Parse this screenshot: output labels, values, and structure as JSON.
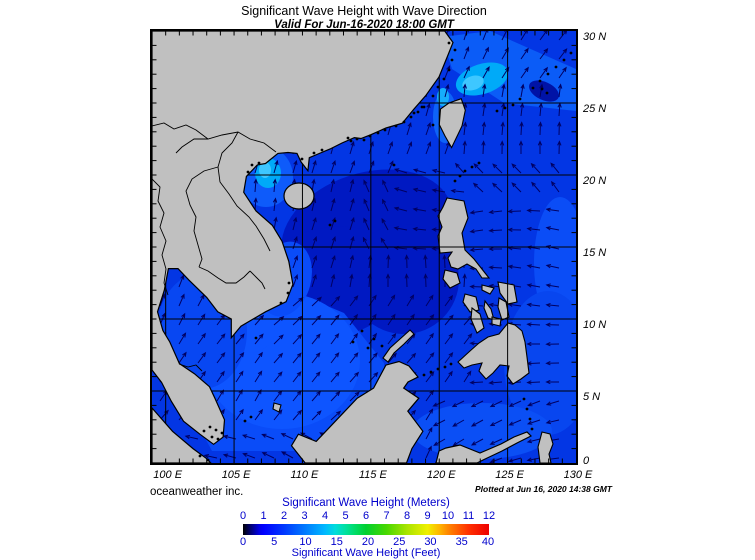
{
  "title": "Significant Wave Height with Wave Direction",
  "subtitle": "Valid For Jun-16-2020 18:00 GMT",
  "map": {
    "lat_labels": [
      "30 N",
      "25 N",
      "20 N",
      "15 N",
      "10 N",
      "5 N",
      "0"
    ],
    "lon_labels": [
      "100 E",
      "105 E",
      "110 E",
      "115 E",
      "120 E",
      "125 E",
      "130 E"
    ]
  },
  "footer": {
    "credit": "oceanweather inc.",
    "plotted_at": "Plotted at Jun 16, 2020 14:38 GMT"
  },
  "legend": {
    "meters_label": "Significant Wave Height (Meters)",
    "feet_label": "Significant Wave Height (Feet)",
    "meters_ticks": [
      "0",
      "1",
      "2",
      "3",
      "4",
      "5",
      "6",
      "7",
      "8",
      "9",
      "10",
      "11",
      "12"
    ],
    "feet_ticks": [
      "0",
      "5",
      "10",
      "15",
      "20",
      "25",
      "30",
      "35",
      "40"
    ],
    "feet_values": [
      0,
      5,
      10,
      15,
      20,
      25,
      30,
      35,
      40
    ],
    "text_color": "#0000CC"
  },
  "colors": {
    "land": "#C0C0C0",
    "coast_line": "#000000",
    "sea_base": "#0336E4",
    "sea_dark": "#0019C2",
    "sea_bright": "#0A4CF8",
    "sea_brighter": "#0E55FF",
    "sea_light": "#0B5CF7",
    "sea_cyan": "#00AAF8",
    "sea_cyan_bright": "#3EC7FF",
    "arrow": "#000063",
    "grid": "#000000",
    "legend_text": "#0000CC",
    "scale_stops": [
      [
        0,
        "#000000"
      ],
      [
        0.3,
        "#000060"
      ],
      [
        0.8,
        "#0000E8"
      ],
      [
        1,
        "#0000FF"
      ],
      [
        2,
        "#0038FF"
      ],
      [
        3,
        "#0078FF"
      ],
      [
        4,
        "#00B8FF"
      ],
      [
        4.5,
        "#00DCDC"
      ],
      [
        5,
        "#00E0A0"
      ],
      [
        5.5,
        "#00DC64"
      ],
      [
        6,
        "#00D030"
      ],
      [
        7,
        "#48D800"
      ],
      [
        8,
        "#AAE400"
      ],
      [
        9,
        "#F0F000"
      ],
      [
        9.6,
        "#FFB400"
      ],
      [
        10,
        "#FF8800"
      ],
      [
        11,
        "#FF3000"
      ],
      [
        12,
        "#EE0000"
      ]
    ]
  }
}
